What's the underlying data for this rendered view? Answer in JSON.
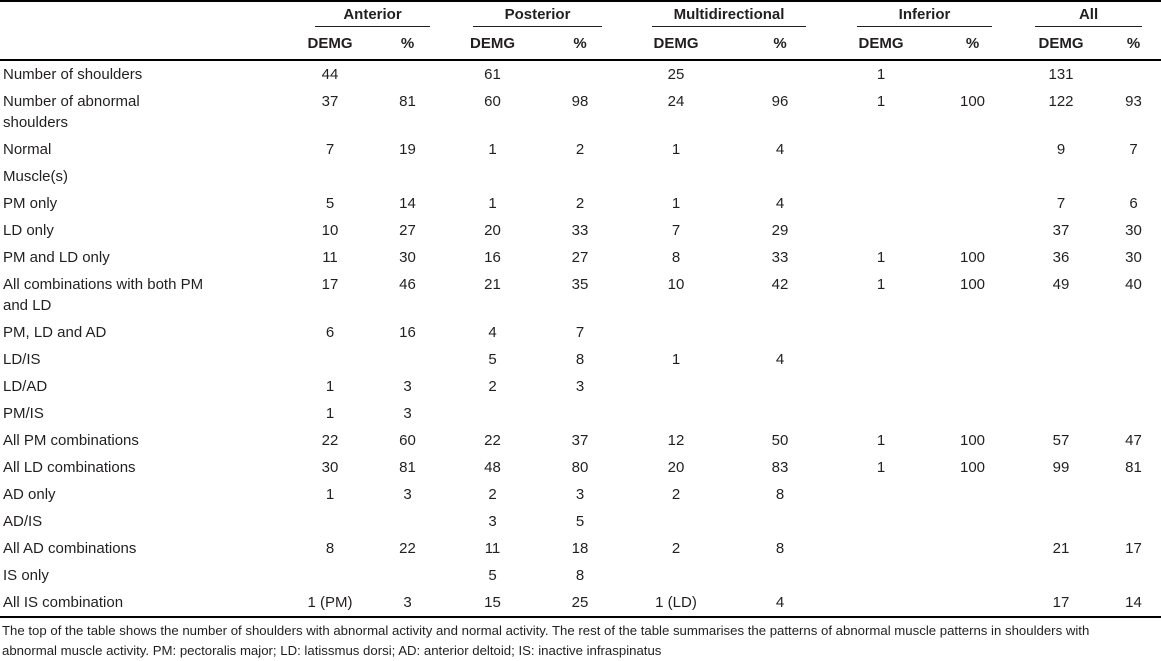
{
  "page": {
    "background": "#ffffff",
    "text_color": "#231f20",
    "rule_color": "#000000"
  },
  "table": {
    "column_groups": [
      {
        "label": "Anterior"
      },
      {
        "label": "Posterior"
      },
      {
        "label": "Multidirectional"
      },
      {
        "label": "Inferior"
      },
      {
        "label": "All"
      }
    ],
    "sub_columns": [
      "DEMG",
      "%"
    ],
    "rows": [
      {
        "label": "Number of shoulders",
        "values": [
          "44",
          "",
          "61",
          "",
          "25",
          "",
          "1",
          "",
          "131",
          ""
        ]
      },
      {
        "label": "Number of abnormal\nshoulders",
        "values": [
          "37",
          "81",
          "60",
          "98",
          "24",
          "96",
          "1",
          "100",
          "122",
          "93"
        ]
      },
      {
        "label": "Normal",
        "values": [
          "7",
          "19",
          "1",
          "2",
          "1",
          "4",
          "",
          "",
          "9",
          "7"
        ]
      },
      {
        "label": "Muscle(s)",
        "values": [
          "",
          "",
          "",
          "",
          "",
          "",
          "",
          "",
          "",
          ""
        ]
      },
      {
        "label": "PM only",
        "values": [
          "5",
          "14",
          "1",
          "2",
          "1",
          "4",
          "",
          "",
          "7",
          "6"
        ]
      },
      {
        "label": "LD only",
        "values": [
          "10",
          "27",
          "20",
          "33",
          "7",
          "29",
          "",
          "",
          "37",
          "30"
        ]
      },
      {
        "label": "PM and LD only",
        "values": [
          "11",
          "30",
          "16",
          "27",
          "8",
          "33",
          "1",
          "100",
          "36",
          "30"
        ]
      },
      {
        "label": "All combinations with both PM\nand LD",
        "values": [
          "17",
          "46",
          "21",
          "35",
          "10",
          "42",
          "1",
          "100",
          "49",
          "40"
        ]
      },
      {
        "label": "PM, LD and AD",
        "values": [
          "6",
          "16",
          "4",
          "7",
          "",
          "",
          "",
          "",
          "",
          ""
        ]
      },
      {
        "label": "LD/IS",
        "values": [
          "",
          "",
          "5",
          "8",
          "1",
          "4",
          "",
          "",
          "",
          ""
        ]
      },
      {
        "label": "LD/AD",
        "values": [
          "1",
          "3",
          "2",
          "3",
          "",
          "",
          "",
          "",
          "",
          ""
        ]
      },
      {
        "label": "PM/IS",
        "values": [
          "1",
          "3",
          "",
          "",
          "",
          "",
          "",
          "",
          "",
          ""
        ]
      },
      {
        "label": "All PM combinations",
        "values": [
          "22",
          "60",
          "22",
          "37",
          "12",
          "50",
          "1",
          "100",
          "57",
          "47"
        ]
      },
      {
        "label": "All LD combinations",
        "values": [
          "30",
          "81",
          "48",
          "80",
          "20",
          "83",
          "1",
          "100",
          "99",
          "81"
        ]
      },
      {
        "label": "AD only",
        "values": [
          "1",
          "3",
          "2",
          "3",
          "2",
          "8",
          "",
          "",
          "",
          ""
        ]
      },
      {
        "label": "AD/IS",
        "values": [
          "",
          "",
          "3",
          "5",
          "",
          "",
          "",
          "",
          "",
          ""
        ]
      },
      {
        "label": "All AD combinations",
        "values": [
          "8",
          "22",
          "11",
          "18",
          "2",
          "8",
          "",
          "",
          "21",
          "17"
        ]
      },
      {
        "label": "IS only",
        "values": [
          "",
          "",
          "5",
          "8",
          "",
          "",
          "",
          "",
          "",
          ""
        ]
      },
      {
        "label": "All IS combination",
        "values": [
          "1 (PM)",
          "3",
          "15",
          "25",
          "1 (LD)",
          "4",
          "",
          "",
          "17",
          "14"
        ]
      }
    ],
    "footnote": "The top of the table shows the number of shoulders with abnormal activity and normal activity. The rest of the table summarises the patterns of abnormal muscle patterns in shoulders with\nabnormal muscle activity. PM: pectoralis major; LD: latissmus dorsi; AD: anterior deltoid; IS: inactive infraspinatus"
  }
}
